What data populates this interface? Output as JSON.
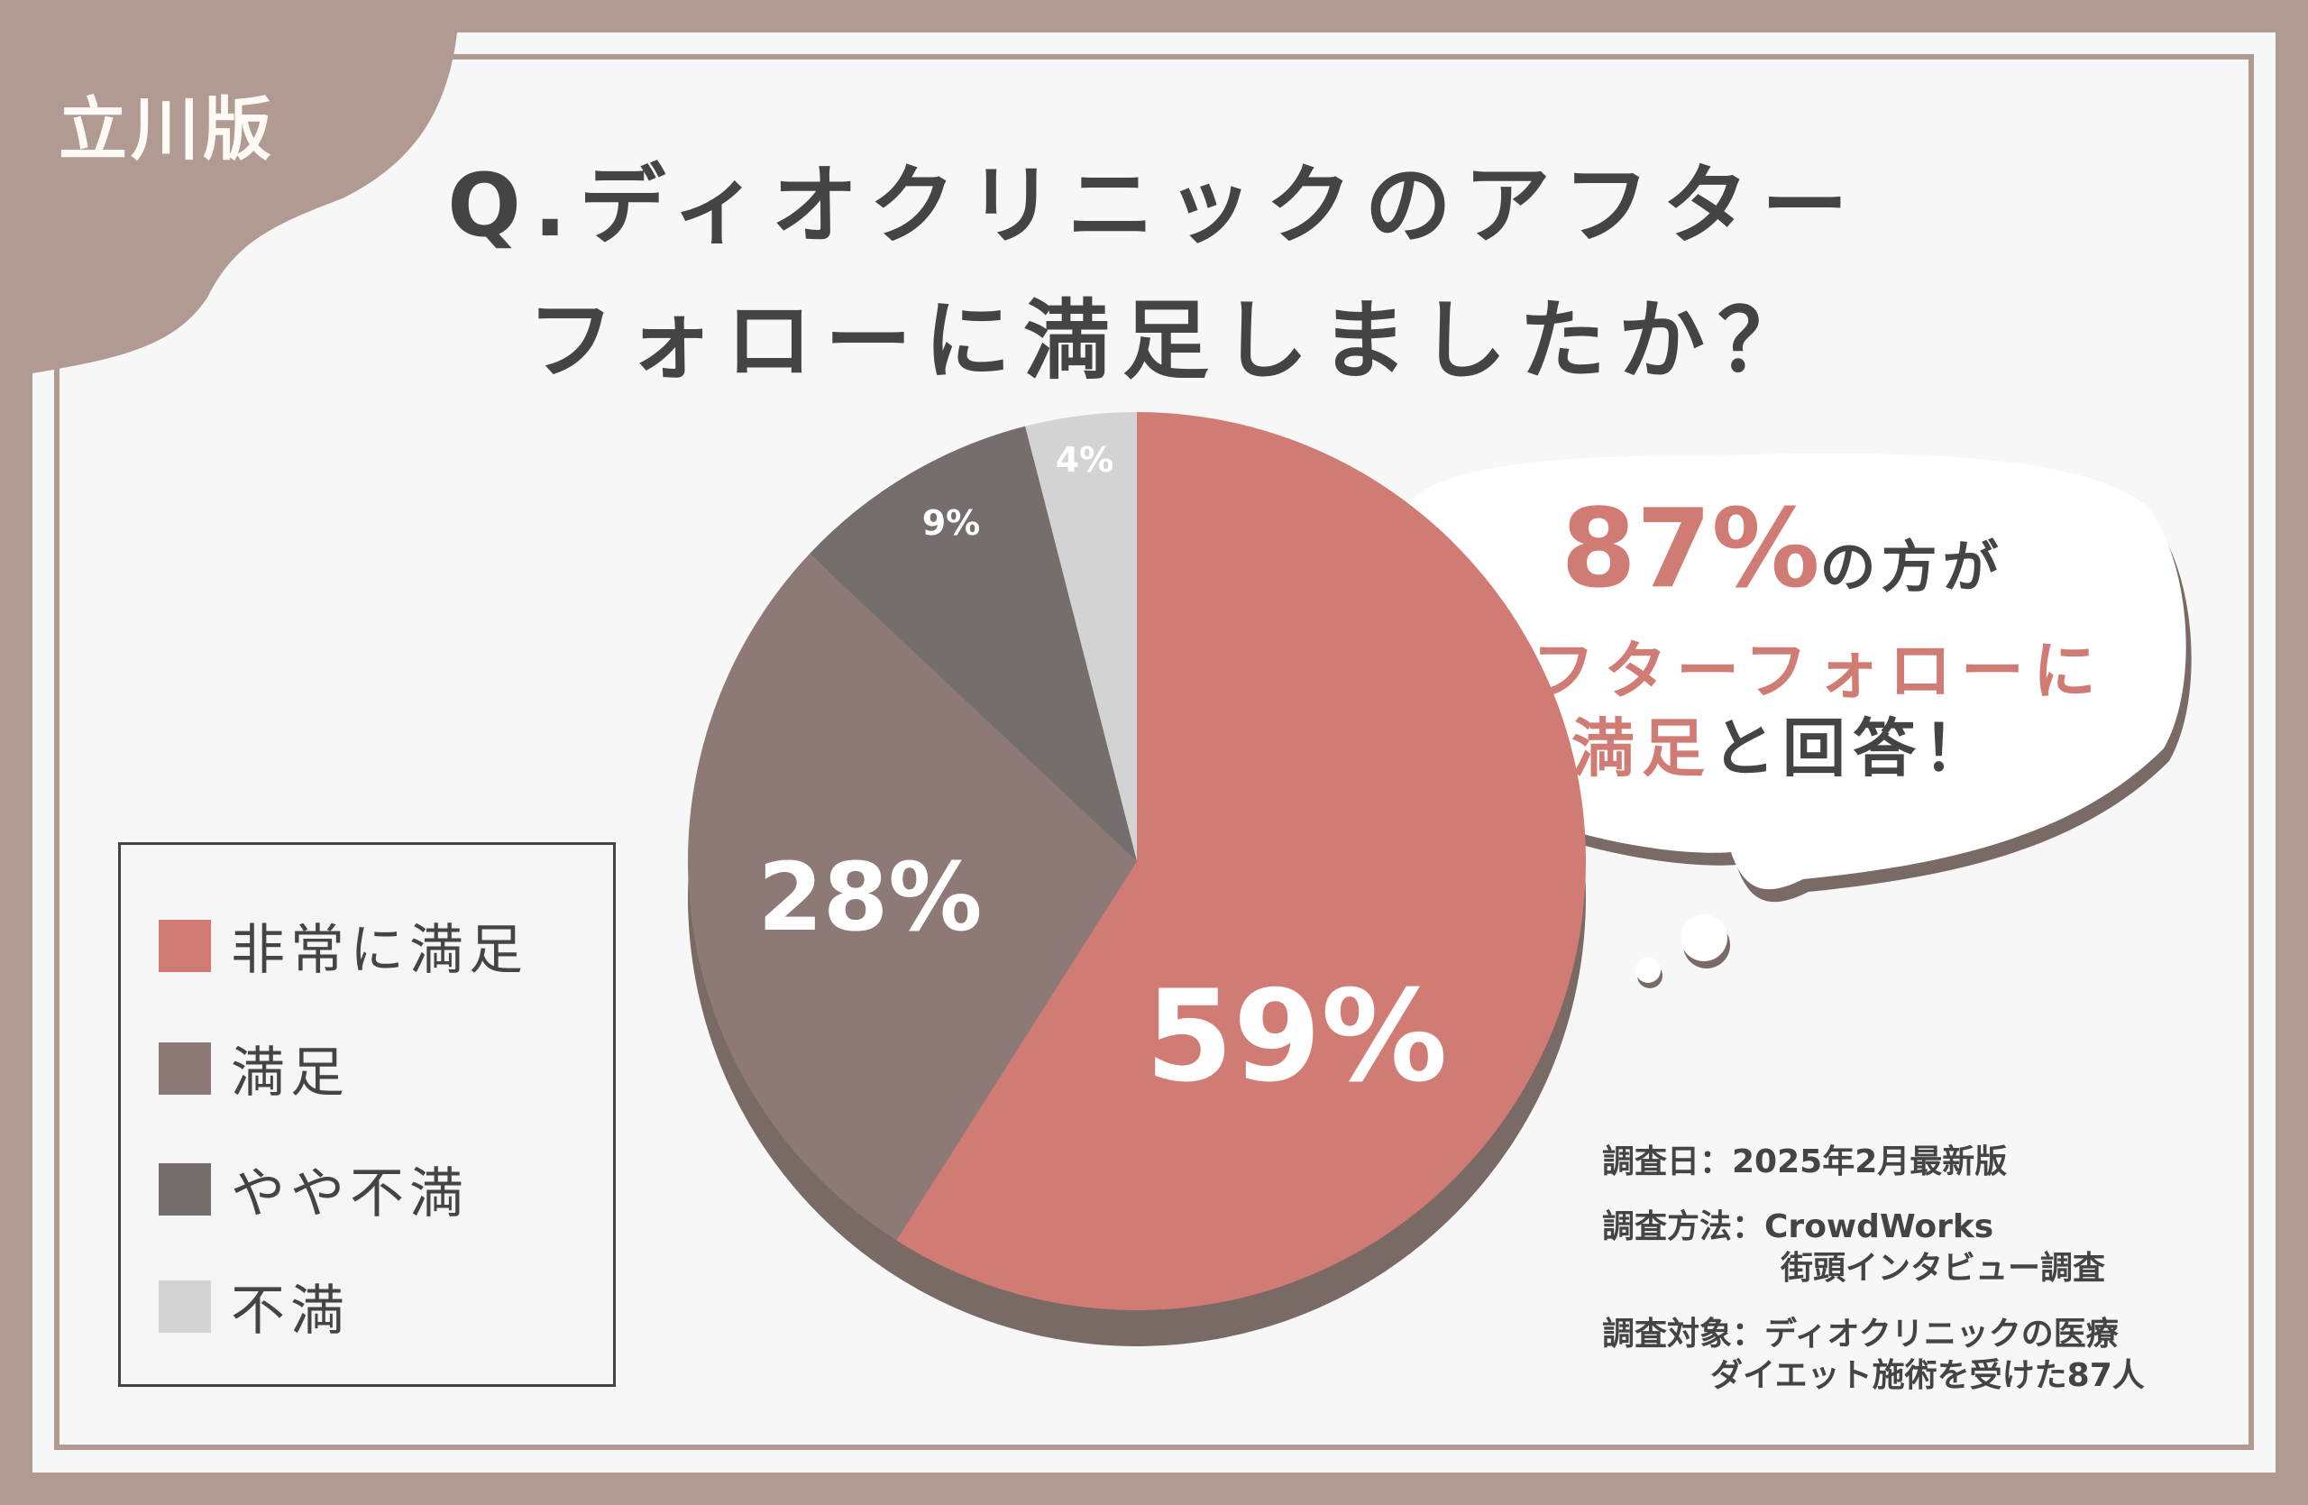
{
  "region_tag": "立川版",
  "title": {
    "line1": "Q.ディオクリニックのアフター",
    "line2": "フォローに満足しましたか？"
  },
  "colors": {
    "background": "#b09a92",
    "very_satisfied": "#d07b74",
    "satisfied": "#8d7a76",
    "somewhat_dissatisfied": "#756e6d",
    "dissatisfied": "#d3d3d3",
    "accent_text": "#d07b74"
  },
  "chart_data": {
    "type": "pie",
    "categories": [
      "非常に満足",
      "満足",
      "やや不満",
      "不満"
    ],
    "values": [
      59,
      28,
      9,
      4
    ],
    "labels": [
      "59%",
      "28%",
      "9%",
      "4%"
    ],
    "legend_placement": "left"
  },
  "callout": {
    "percent": "87%",
    "line1_rest": "の方が",
    "line2": "アフターフォローに",
    "line3_accent": "満足",
    "line3_rest": "と回答！"
  },
  "notes": {
    "date": "調査日：2025年2月最新版",
    "method_label": "調査方法：",
    "method_1": "CrowdWorks",
    "method_2": "街頭インタビュー調査",
    "target_label": "調査対象：",
    "target_1": "ディオクリニックの医療",
    "target_2": "ダイエット施術を受けた87人"
  }
}
